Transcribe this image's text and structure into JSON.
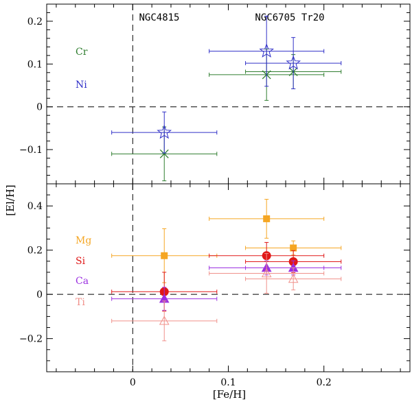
{
  "chart_data": [
    {
      "type": "scatter",
      "panel": "top",
      "ylim": [
        -0.18,
        0.24
      ],
      "xlim": [
        -0.09,
        0.29
      ],
      "ylabel": "[El/H]",
      "xlabel": "",
      "yticks": [
        -0.1,
        0,
        0.1,
        0.2
      ],
      "ytick_labels": [
        "−0.1",
        "0",
        "0.1",
        "0.2"
      ],
      "reference_lines": {
        "x": 0,
        "y": 0
      },
      "cluster_labels": [
        "NGC4815",
        "NGC6705  Tr20"
      ],
      "series": [
        {
          "name": "Cr",
          "color": "#2e7d2e",
          "marker": "x",
          "points": [
            {
              "x": 0.033,
              "y": -0.11,
              "xerr": 0.055,
              "yerr": 0.063
            },
            {
              "x": 0.14,
              "y": 0.075,
              "xerr": 0.06,
              "yerr": 0.06
            },
            {
              "x": 0.168,
              "y": 0.082,
              "xerr": 0.05,
              "yerr": 0.04
            }
          ]
        },
        {
          "name": "Ni",
          "color": "#3030c8",
          "marker": "star-open",
          "points": [
            {
              "x": 0.033,
              "y": -0.06,
              "xerr": 0.055,
              "yerr": 0.048
            },
            {
              "x": 0.14,
              "y": 0.13,
              "xerr": 0.06,
              "yerr": 0.082
            },
            {
              "x": 0.168,
              "y": 0.102,
              "xerr": 0.05,
              "yerr": 0.06
            }
          ]
        }
      ]
    },
    {
      "type": "scatter",
      "panel": "bottom",
      "ylim": [
        -0.35,
        0.5
      ],
      "xlim": [
        -0.09,
        0.29
      ],
      "ylabel": "",
      "xlabel": "[Fe/H]",
      "yticks": [
        -0.2,
        0,
        0.2,
        0.4
      ],
      "ytick_labels": [
        "−0.2",
        "0",
        "0.2",
        "0.4"
      ],
      "xticks": [
        0,
        0.1,
        0.2
      ],
      "xtick_labels": [
        "0",
        "0.1",
        "0.2"
      ],
      "reference_lines": {
        "x": 0,
        "y": 0
      },
      "series": [
        {
          "name": "Mg",
          "color": "#f5a623",
          "marker": "square-filled",
          "points": [
            {
              "x": 0.033,
              "y": 0.175,
              "xerr": 0.055,
              "yerr": 0.122
            },
            {
              "x": 0.14,
              "y": 0.342,
              "xerr": 0.06,
              "yerr": 0.088
            },
            {
              "x": 0.168,
              "y": 0.21,
              "xerr": 0.05,
              "yerr": 0.032
            }
          ]
        },
        {
          "name": "Si",
          "color": "#e01818",
          "marker": "circle-filled",
          "points": [
            {
              "x": 0.033,
              "y": 0.012,
              "xerr": 0.055,
              "yerr": 0.088
            },
            {
              "x": 0.14,
              "y": 0.175,
              "xerr": 0.06,
              "yerr": 0.06
            },
            {
              "x": 0.168,
              "y": 0.148,
              "xerr": 0.05,
              "yerr": 0.05
            }
          ]
        },
        {
          "name": "Ca",
          "color": "#9b30e0",
          "marker": "triangle-filled",
          "points": [
            {
              "x": 0.033,
              "y": -0.02,
              "xerr": 0.055,
              "yerr": 0.052
            },
            {
              "x": 0.14,
              "y": 0.12,
              "xerr": 0.06,
              "yerr": 0.032
            },
            {
              "x": 0.168,
              "y": 0.12,
              "xerr": 0.05,
              "yerr": 0.032
            }
          ]
        },
        {
          "name": "Ti",
          "color": "#f0908a",
          "marker": "triangle-open",
          "points": [
            {
              "x": 0.033,
              "y": -0.12,
              "xerr": 0.055,
              "yerr": 0.09
            },
            {
              "x": 0.14,
              "y": 0.095,
              "xerr": 0.06,
              "yerr": 0.09
            },
            {
              "x": 0.168,
              "y": 0.07,
              "xerr": 0.05,
              "yerr": 0.05
            }
          ]
        }
      ]
    }
  ]
}
